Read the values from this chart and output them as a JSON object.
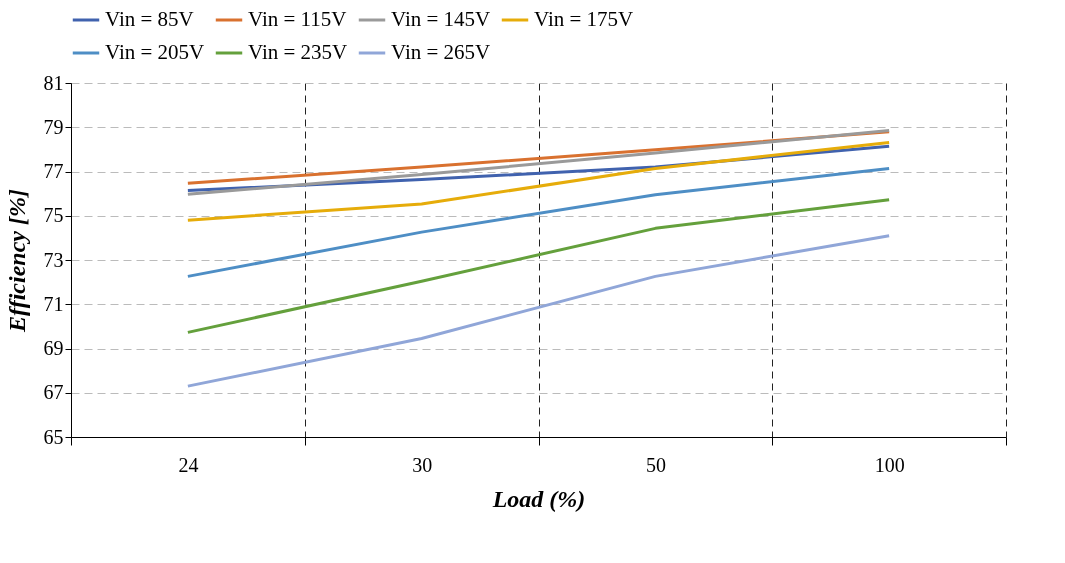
{
  "chart_data": {
    "type": "line",
    "xlabel": "Load (%)",
    "ylabel": "Efficiency [%]",
    "categories": [
      "24",
      "30",
      "50",
      "100"
    ],
    "ylim": [
      65,
      81
    ],
    "yticks": [
      65,
      67,
      69,
      71,
      73,
      75,
      77,
      79,
      81
    ],
    "grid": true,
    "legend": "top",
    "marker": "none",
    "line_style": "solid",
    "series": [
      {
        "name": "Vin = 85V",
        "color": "#4062ae",
        "values": [
          76.14,
          76.64,
          77.2,
          78.14
        ]
      },
      {
        "name": "Vin = 115V",
        "color": "#d9712f",
        "values": [
          76.47,
          77.2,
          77.98,
          78.8
        ]
      },
      {
        "name": "Vin = 145V",
        "color": "#9a9a9a",
        "values": [
          75.97,
          76.86,
          77.84,
          78.85
        ]
      },
      {
        "name": "Vin = 175V",
        "color": "#e6ac0a",
        "values": [
          74.8,
          75.53,
          77.14,
          78.31
        ]
      },
      {
        "name": "Vin = 205V",
        "color": "#4e8ec5",
        "values": [
          72.26,
          74.26,
          75.95,
          77.14
        ]
      },
      {
        "name": "Vin = 235V",
        "color": "#64a03c",
        "values": [
          69.73,
          72.04,
          74.43,
          75.72
        ]
      },
      {
        "name": "Vin = 265V",
        "color": "#90a6d8",
        "values": [
          67.3,
          69.45,
          72.26,
          74.1
        ]
      }
    ]
  }
}
